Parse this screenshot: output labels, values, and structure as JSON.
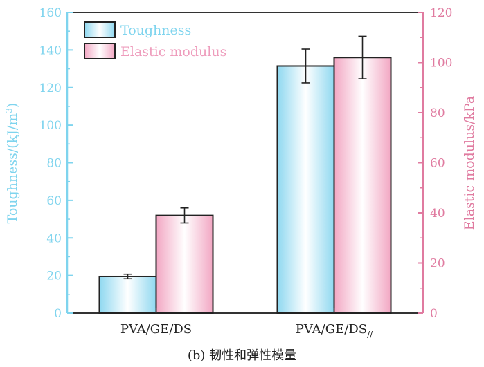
{
  "caption": "(b) 韧性和弹性模量",
  "chart_data": {
    "type": "bar",
    "categories": [
      "PVA/GE/DS",
      "PVA/GE/DS"
    ],
    "category_subscripts": [
      "",
      "//"
    ],
    "series": [
      {
        "name": "Toughness",
        "axis": "left",
        "values": [
          19.5,
          131.5
        ],
        "errors": [
          1.2,
          9.0
        ],
        "color": "#7fd4ee"
      },
      {
        "name": "Elastic modulus",
        "axis": "right",
        "values": [
          39,
          102
        ],
        "errors": [
          3,
          8.5
        ],
        "color": "#ee9cbc"
      }
    ],
    "ylabel": "Toughness/(kJ/m³)",
    "ylabel_unit_base": "Toughness/(kJ/m",
    "ylabel_unit_sup": "3",
    "ylabel_unit_end": ")",
    "y2label": "Elastic modulus/kPa",
    "ylim": [
      0,
      160
    ],
    "y2lim": [
      0,
      120
    ],
    "yticks": [
      0,
      20,
      40,
      60,
      80,
      100,
      120,
      140,
      160
    ],
    "y2ticks": [
      0,
      20,
      40,
      60,
      80,
      100,
      120
    ],
    "left_axis_color": "#7fd4ee",
    "right_axis_color": "#e07ba0",
    "legend_position": "top-left",
    "grid": false
  }
}
